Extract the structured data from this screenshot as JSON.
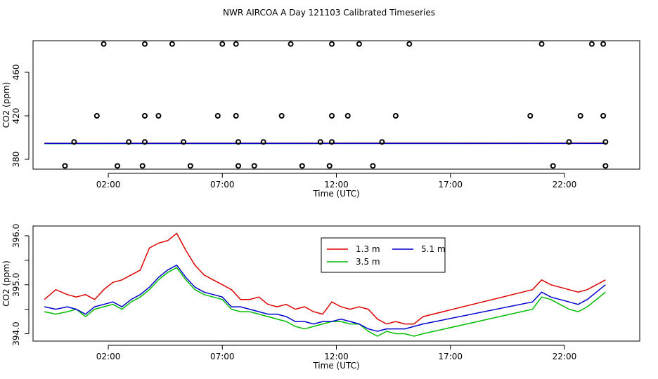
{
  "title": "NWR AIRCOA A  Day 121103  Calibrated Timeseries",
  "chart_data": [
    {
      "type": "scatter",
      "xlabel": "Time (UTC)",
      "ylabel": "CO2 (ppm)",
      "x_unit": "hour (UTC)",
      "xlim": [
        -1.3,
        25.3
      ],
      "ylim": [
        371.0,
        489.0
      ],
      "x_ticks": [
        2,
        7,
        12,
        17,
        22
      ],
      "x_tick_labels": [
        "02:00",
        "07:00",
        "12:00",
        "17:00",
        "22:00"
      ],
      "y_ticks": [
        380,
        420,
        460
      ],
      "y_tick_labels": [
        "380",
        "420",
        "460"
      ],
      "points": {
        "x": [
          1.8,
          3.6,
          4.8,
          7.0,
          7.6,
          10.0,
          11.8,
          13.0,
          15.2,
          21.0,
          23.2,
          23.7,
          1.5,
          3.6,
          4.2,
          6.8,
          7.6,
          9.6,
          11.8,
          12.5,
          14.6,
          20.5,
          22.7,
          23.7,
          0.5,
          2.9,
          3.6,
          5.3,
          7.7,
          8.8,
          11.3,
          11.8,
          14.0,
          22.2,
          23.8,
          0.1,
          2.4,
          3.5,
          5.6,
          7.7,
          8.4,
          10.5,
          11.7,
          13.6,
          21.5,
          23.8
        ],
        "y": [
          486,
          486,
          486,
          486,
          486,
          486,
          486,
          486,
          486,
          486,
          486,
          486,
          420,
          420,
          420,
          420,
          420,
          420,
          420,
          420,
          420,
          420,
          420,
          420,
          396,
          396,
          396,
          396,
          396,
          396,
          396,
          396,
          396,
          396,
          396,
          374,
          374,
          374,
          374,
          374,
          374,
          374,
          374,
          374,
          374,
          374
        ]
      },
      "series": [
        {
          "name": "1.3 m",
          "color": "#dd0000",
          "x": [
            -0.8,
            23.8
          ],
          "y": [
            394.8,
            395.0
          ]
        },
        {
          "name": "3.5 m",
          "color": "#00bb00",
          "x": [
            -0.8,
            23.8
          ],
          "y": [
            394.5,
            394.7
          ]
        },
        {
          "name": "5.1 m",
          "color": "#0000cc",
          "x": [
            -0.8,
            23.8
          ],
          "y": [
            394.6,
            394.6
          ]
        }
      ]
    },
    {
      "type": "line",
      "xlabel": "Time (UTC)",
      "ylabel": "CO2 (ppm)",
      "x_unit": "hour (UTC)",
      "xlim": [
        -1.3,
        25.3
      ],
      "ylim": [
        393.85,
        396.2
      ],
      "x_ticks": [
        2,
        7,
        12,
        17,
        22
      ],
      "x_tick_labels": [
        "02:00",
        "07:00",
        "12:00",
        "17:00",
        "22:00"
      ],
      "y_ticks": [
        394.0,
        394.5,
        395.0,
        395.5,
        396.0
      ],
      "y_tick_labels": [
        "394.0",
        "",
        "395.0",
        "",
        "396.0"
      ],
      "legend": {
        "position": "top-center",
        "entries": [
          "1.3 m",
          "5.1 m",
          "3.5 m"
        ]
      },
      "series": [
        {
          "name": "1.3 m",
          "color": "#dd0000",
          "x": [
            -0.8,
            -0.3,
            0.2,
            0.6,
            1.0,
            1.4,
            1.8,
            2.2,
            2.6,
            3.0,
            3.4,
            3.8,
            4.2,
            4.6,
            5.0,
            5.4,
            5.8,
            6.2,
            6.6,
            7.0,
            7.4,
            7.8,
            8.2,
            8.6,
            9.0,
            9.4,
            9.8,
            10.2,
            10.6,
            11.0,
            11.4,
            11.8,
            12.2,
            12.6,
            13.0,
            13.4,
            13.8,
            14.2,
            14.6,
            15.0,
            15.4,
            15.8,
            20.6,
            21.0,
            21.4,
            21.8,
            22.2,
            22.6,
            23.0,
            23.4,
            23.8
          ],
          "y": [
            394.7,
            394.9,
            394.8,
            394.75,
            394.8,
            394.7,
            394.9,
            395.05,
            395.1,
            395.2,
            395.3,
            395.75,
            395.85,
            395.9,
            396.05,
            395.7,
            395.4,
            395.2,
            395.1,
            395.0,
            394.9,
            394.7,
            394.7,
            394.75,
            394.6,
            394.55,
            394.6,
            394.5,
            394.55,
            394.45,
            394.4,
            394.65,
            394.55,
            394.5,
            394.55,
            394.5,
            394.3,
            394.2,
            394.25,
            394.2,
            394.2,
            394.35,
            394.9,
            395.1,
            395.0,
            394.95,
            394.9,
            394.85,
            394.9,
            395.0,
            395.1
          ]
        },
        {
          "name": "3.5 m",
          "color": "#00bb00",
          "x": [
            -0.8,
            -0.3,
            0.2,
            0.6,
            1.0,
            1.4,
            1.8,
            2.2,
            2.6,
            3.0,
            3.4,
            3.8,
            4.2,
            4.6,
            5.0,
            5.4,
            5.8,
            6.2,
            6.6,
            7.0,
            7.4,
            7.8,
            8.2,
            8.6,
            9.0,
            9.4,
            9.8,
            10.2,
            10.6,
            11.0,
            11.4,
            11.8,
            12.2,
            12.6,
            13.0,
            13.4,
            13.8,
            14.2,
            14.6,
            15.0,
            15.4,
            15.8,
            20.6,
            21.0,
            21.4,
            21.8,
            22.2,
            22.6,
            23.0,
            23.4,
            23.8
          ],
          "y": [
            394.45,
            394.4,
            394.45,
            394.5,
            394.35,
            394.5,
            394.55,
            394.6,
            394.5,
            394.65,
            394.75,
            394.9,
            395.1,
            395.25,
            395.35,
            395.1,
            394.9,
            394.8,
            394.75,
            394.7,
            394.5,
            394.45,
            394.45,
            394.4,
            394.35,
            394.3,
            394.25,
            394.15,
            394.1,
            394.15,
            394.2,
            394.25,
            394.25,
            394.2,
            394.2,
            394.05,
            393.95,
            394.05,
            394.0,
            394.0,
            393.95,
            394.0,
            394.5,
            394.75,
            394.7,
            394.6,
            394.5,
            394.45,
            394.55,
            394.7,
            394.85
          ]
        },
        {
          "name": "5.1 m",
          "color": "#0000cc",
          "x": [
            -0.8,
            -0.3,
            0.2,
            0.6,
            1.0,
            1.4,
            1.8,
            2.2,
            2.6,
            3.0,
            3.4,
            3.8,
            4.2,
            4.6,
            5.0,
            5.4,
            5.8,
            6.2,
            6.6,
            7.0,
            7.4,
            7.8,
            8.2,
            8.6,
            9.0,
            9.4,
            9.8,
            10.2,
            10.6,
            11.0,
            11.4,
            11.8,
            12.2,
            12.6,
            13.0,
            13.4,
            13.8,
            14.2,
            14.6,
            15.0,
            15.4,
            15.8,
            20.6,
            21.0,
            21.4,
            21.8,
            22.2,
            22.6,
            23.0,
            23.4,
            23.8
          ],
          "y": [
            394.55,
            394.5,
            394.55,
            394.5,
            394.4,
            394.55,
            394.6,
            394.65,
            394.55,
            394.7,
            394.8,
            394.95,
            395.15,
            395.3,
            395.4,
            395.15,
            394.95,
            394.85,
            394.8,
            394.75,
            394.55,
            394.55,
            394.5,
            394.45,
            394.4,
            394.4,
            394.35,
            394.25,
            394.25,
            394.2,
            394.25,
            394.25,
            394.3,
            394.25,
            394.2,
            394.1,
            394.05,
            394.1,
            394.1,
            394.1,
            394.15,
            394.2,
            394.65,
            394.85,
            394.75,
            394.7,
            394.65,
            394.6,
            394.7,
            394.85,
            395.0
          ]
        }
      ]
    }
  ]
}
